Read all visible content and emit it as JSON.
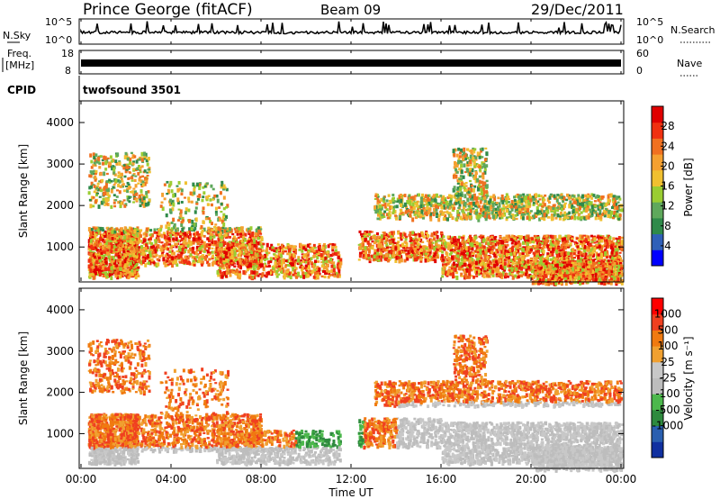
{
  "header": {
    "station": "Prince George (fitACF)",
    "beam": "Beam 09",
    "date": "29/Dec/2011"
  },
  "left_labels": {
    "nsky": "N.Sky",
    "freq_top": "Freq.",
    "freq_unit": "[MHz]",
    "cpid": "CPID"
  },
  "right_labels": {
    "nsearch": "N.Search",
    "nave": "Nave"
  },
  "cpid_value": "twofsound 3501",
  "colors": {
    "power": [
      "#0000ff",
      "#3060b8",
      "#2f8a4a",
      "#5fa85c",
      "#9acd32",
      "#f0c030",
      "#f5a030",
      "#f07020",
      "#f03010",
      "#e00000"
    ],
    "velocity": [
      "#1030a0",
      "#2a5fb0",
      "#2e8a3e",
      "#4cb84c",
      "#bdbdbd",
      "#c8c8c8",
      "#f0a030",
      "#f07a10",
      "#f04020",
      "#ff0000"
    ]
  },
  "chart_data": [
    {
      "type": "line",
      "panel": "noise",
      "left_axis": {
        "label": "N.Sky",
        "ticks": [
          "10^5",
          "10^0"
        ]
      },
      "right_axis": {
        "label": "N.Search",
        "ticks": [
          "10^5",
          "10^0"
        ]
      },
      "x": [
        "00:00",
        "24:00"
      ]
    },
    {
      "type": "line",
      "panel": "frequency",
      "left_axis": {
        "label": "Freq. [MHz]",
        "ticks": [
          18,
          8
        ]
      },
      "right_axis": {
        "label": "Nave",
        "ticks": [
          60,
          0
        ]
      }
    },
    {
      "type": "heatmap",
      "panel": "power",
      "ylabel": "Slant Range [km]",
      "ylim": [
        180,
        4500
      ],
      "yticks": [
        1000,
        2000,
        3000,
        4000
      ],
      "colorbar": {
        "label": "Power [dB]",
        "ticks": [
          4,
          8,
          12,
          16,
          20,
          24,
          28
        ]
      }
    },
    {
      "type": "heatmap",
      "panel": "velocity",
      "ylabel": "Slant Range [km]",
      "ylim": [
        180,
        4500
      ],
      "yticks": [
        1000,
        2000,
        3000,
        4000
      ],
      "colorbar": {
        "label": "Velocity [m s⁻¹]",
        "ticks": [
          1000,
          500,
          100,
          25,
          -25,
          -100,
          -500,
          -1000
        ]
      }
    }
  ],
  "x_axis": {
    "xlabel": "Time UT",
    "ticks": [
      "00:00",
      "04:00",
      "08:00",
      "12:00",
      "16:00",
      "20:00",
      "00:00"
    ]
  }
}
